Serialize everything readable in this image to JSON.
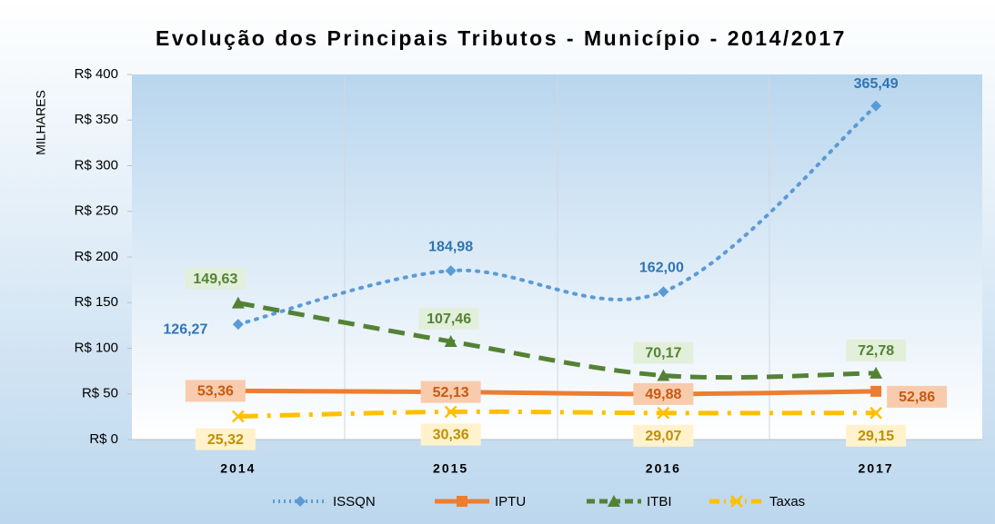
{
  "chart_data": {
    "type": "line",
    "title": "Evolução dos Principais Tributos - Município - 2014/2017",
    "y_axis_label": "MILHARES",
    "categories": [
      "2014",
      "2015",
      "2016",
      "2017"
    ],
    "ylim": [
      0,
      400
    ],
    "yticks": [
      {
        "value": 0,
        "label": "R$ 0"
      },
      {
        "value": 50,
        "label": "R$ 50"
      },
      {
        "value": 100,
        "label": "R$ 100"
      },
      {
        "value": 150,
        "label": "R$ 150"
      },
      {
        "value": 200,
        "label": "R$ 200"
      },
      {
        "value": 250,
        "label": "R$ 250"
      },
      {
        "value": 300,
        "label": "R$ 300"
      },
      {
        "value": 350,
        "label": "R$ 350"
      },
      {
        "value": 400,
        "label": "R$ 400"
      }
    ],
    "legend": "bottom",
    "series": [
      {
        "name": "ISSQN",
        "color": "#5b9bd5",
        "values": [
          126.27,
          184.98,
          162.0,
          365.49
        ],
        "value_labels": [
          "126,27",
          "184,98",
          "162,00",
          "365,49"
        ]
      },
      {
        "name": "IPTU",
        "color": "#ed7d31",
        "values": [
          53.36,
          52.13,
          49.88,
          52.86
        ],
        "value_labels": [
          "53,36",
          "52,13",
          "49,88",
          "52,86"
        ]
      },
      {
        "name": "ITBI",
        "color": "#548235",
        "values": [
          149.63,
          107.46,
          70.17,
          72.78
        ],
        "value_labels": [
          "149,63",
          "107,46",
          "70,17",
          "72,78"
        ]
      },
      {
        "name": "Taxas",
        "color": "#ffc000",
        "values": [
          25.32,
          30.36,
          29.07,
          29.15
        ],
        "value_labels": [
          "25,32",
          "30,36",
          "29,07",
          "29,15"
        ]
      }
    ]
  }
}
